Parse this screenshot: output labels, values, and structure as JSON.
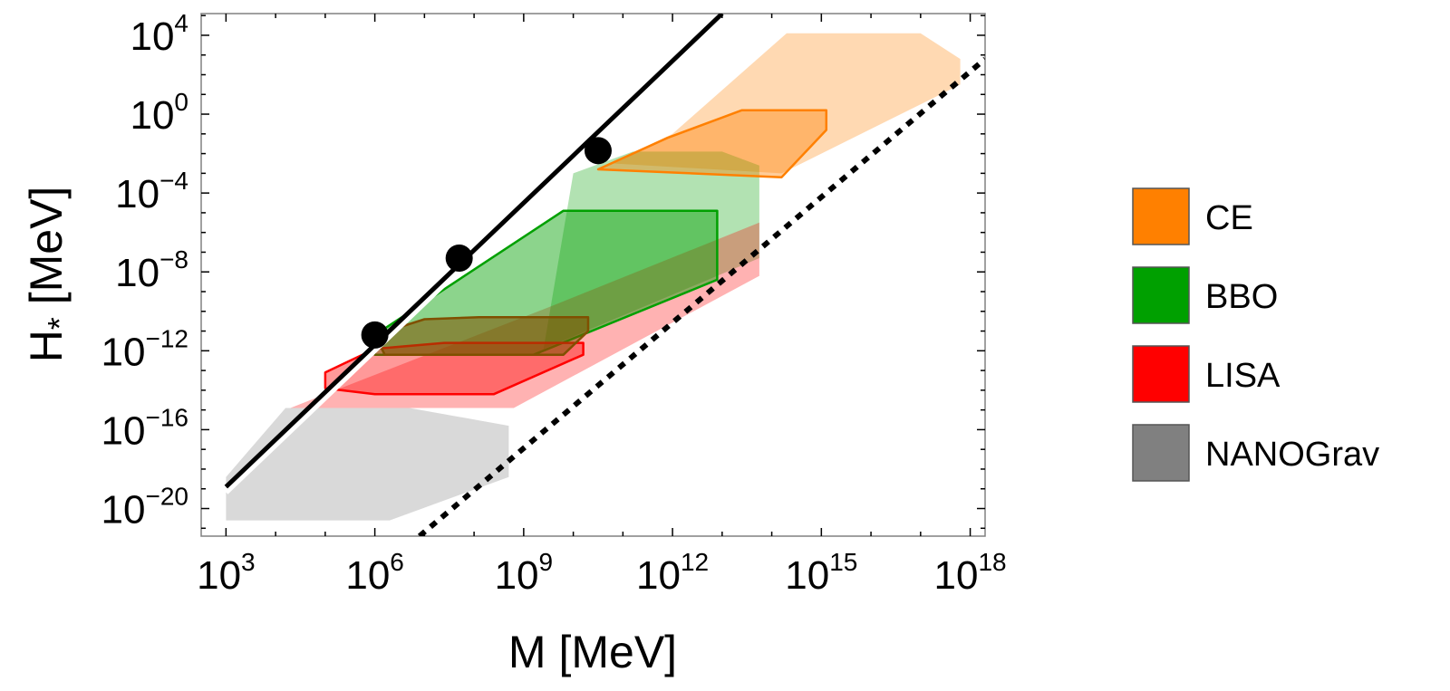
{
  "chart_data": {
    "type": "area",
    "xlabel": "M [MeV]",
    "ylabel": "H",
    "ylabel_subscript": "*",
    "ylabel_unit": " [MeV]",
    "x_scale": "log10",
    "y_scale": "log10",
    "xlim_log10": [
      2.5,
      18.3
    ],
    "ylim_log10": [
      -21.4,
      5.1
    ],
    "x_ticks": [
      {
        "base": "10",
        "exp": "3",
        "value": 3
      },
      {
        "base": "10",
        "exp": "6",
        "value": 6
      },
      {
        "base": "10",
        "exp": "9",
        "value": 9
      },
      {
        "base": "10",
        "exp": "12",
        "value": 12
      },
      {
        "base": "10",
        "exp": "15",
        "value": 15
      },
      {
        "base": "10",
        "exp": "18",
        "value": 18
      }
    ],
    "y_ticks": [
      {
        "base": "10",
        "exp": "4",
        "value": 4
      },
      {
        "base": "10",
        "exp": "0",
        "value": 0
      },
      {
        "base": "10",
        "exp": "−4",
        "value": -4
      },
      {
        "base": "10",
        "exp": "−8",
        "value": -8
      },
      {
        "base": "10",
        "exp": "−12",
        "value": -12
      },
      {
        "base": "10",
        "exp": "−16",
        "value": -16
      },
      {
        "base": "10",
        "exp": "−20",
        "value": -20
      }
    ],
    "lines": [
      {
        "name": "upper-bound-line",
        "style": "solid",
        "color": "#000000",
        "points": [
          [
            3,
            -18.9
          ],
          [
            13.0,
            5.1
          ]
        ]
      },
      {
        "name": "lower-bound-line",
        "style": "dotted",
        "color": "#000000",
        "points": [
          [
            6.9,
            -21.4
          ],
          [
            18.3,
            2.8
          ]
        ]
      }
    ],
    "points": [
      {
        "x": 6.0,
        "y": -11.2
      },
      {
        "x": 7.7,
        "y": -7.3
      },
      {
        "x": 10.5,
        "y": -1.85
      }
    ],
    "regions": [
      {
        "name": "CE",
        "kind": "envelope",
        "fill": "#FF8000",
        "fill_opacity": 0.3,
        "stroke": "none",
        "poly": [
          [
            10.8,
            -2.5
          ],
          [
            12.0,
            -1.0
          ],
          [
            14.3,
            4.1
          ],
          [
            17.0,
            4.1
          ],
          [
            17.8,
            2.8
          ],
          [
            17.8,
            1.5
          ],
          [
            14.2,
            -3.0
          ]
        ]
      },
      {
        "name": "BBO",
        "kind": "envelope",
        "fill": "#00A000",
        "fill_opacity": 0.3,
        "stroke": "none",
        "poly": [
          [
            10.0,
            -3.0
          ],
          [
            11.2,
            -1.9
          ],
          [
            13.0,
            -1.9
          ],
          [
            13.75,
            -2.6
          ],
          [
            13.75,
            -7.3
          ],
          [
            9.4,
            -11.9
          ]
        ]
      },
      {
        "name": "LISA",
        "kind": "envelope",
        "fill": "#FF0000",
        "fill_opacity": 0.3,
        "stroke": "none",
        "poly": [
          [
            4.3,
            -14.9
          ],
          [
            5.0,
            -14.2
          ],
          [
            9.5,
            -9.8
          ],
          [
            13.75,
            -5.5
          ],
          [
            13.75,
            -8.2
          ],
          [
            8.8,
            -14.9
          ]
        ]
      },
      {
        "name": "NANOGrav",
        "kind": "envelope",
        "fill": "#808080",
        "fill_opacity": 0.3,
        "stroke": "none",
        "poly": [
          [
            3.0,
            -18.4
          ],
          [
            4.2,
            -14.9
          ],
          [
            6.7,
            -14.9
          ],
          [
            8.7,
            -15.8
          ],
          [
            8.7,
            -18.4
          ],
          [
            6.3,
            -20.6
          ],
          [
            3.0,
            -20.6
          ]
        ]
      },
      {
        "name": "CE",
        "kind": "core",
        "fill": "#FF8000",
        "fill_opacity": 0.4,
        "stroke": "#FF8000",
        "poly": [
          [
            10.5,
            -2.8
          ],
          [
            11.9,
            -1.2
          ],
          [
            13.4,
            0.2
          ],
          [
            15.1,
            0.2
          ],
          [
            15.1,
            -0.8
          ],
          [
            14.2,
            -3.2
          ]
        ]
      },
      {
        "name": "BBO",
        "kind": "core",
        "fill": "#00A000",
        "fill_opacity": 0.45,
        "stroke": "#00A000",
        "poly": [
          [
            6.0,
            -11.2
          ],
          [
            9.8,
            -4.9
          ],
          [
            12.9,
            -4.9
          ],
          [
            12.9,
            -8.4
          ],
          [
            9.2,
            -12.2
          ],
          [
            6.0,
            -12.2
          ]
        ]
      },
      {
        "name": "LISA",
        "kind": "core",
        "fill": "#FF0000",
        "fill_opacity": 0.4,
        "stroke": "#FF0000",
        "poly": [
          [
            5.0,
            -13.1
          ],
          [
            6.0,
            -11.9
          ],
          [
            7.4,
            -11.6
          ],
          [
            10.2,
            -11.6
          ],
          [
            10.2,
            -12.2
          ],
          [
            8.4,
            -14.2
          ],
          [
            6.0,
            -14.2
          ],
          [
            5.0,
            -13.9
          ]
        ]
      },
      {
        "name": "NANOGrav",
        "kind": "core",
        "fill": "#805000",
        "fill_opacity": 0.55,
        "stroke": "#805000",
        "poly": [
          [
            6.0,
            -11.2
          ],
          [
            7.0,
            -10.4
          ],
          [
            8.1,
            -10.3
          ],
          [
            10.3,
            -10.3
          ],
          [
            10.3,
            -11.0
          ],
          [
            9.8,
            -12.2
          ],
          [
            6.2,
            -12.2
          ]
        ]
      }
    ],
    "legend": {
      "placement": "right",
      "items": [
        {
          "label": "CE",
          "color": "#FF8000"
        },
        {
          "label": "BBO",
          "color": "#00A000"
        },
        {
          "label": "LISA",
          "color": "#FF0000"
        },
        {
          "label": "NANOGrav",
          "color": "#808080"
        }
      ]
    }
  }
}
